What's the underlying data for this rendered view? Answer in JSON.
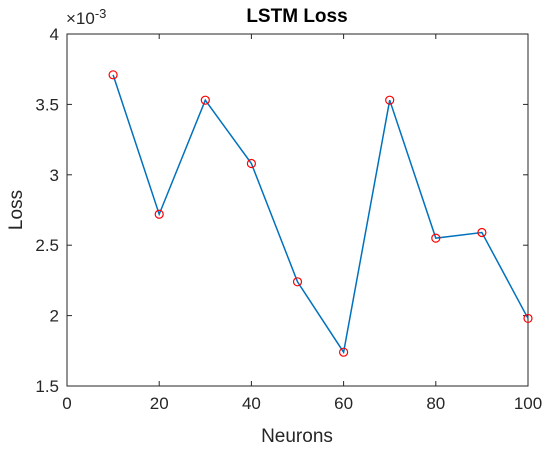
{
  "chart_data": {
    "type": "line",
    "title": "LSTM Loss",
    "xlabel": "Neurons",
    "ylabel": "Loss",
    "y_exponent_base": "×10",
    "y_exponent_power": "-3",
    "xlim": [
      0,
      100
    ],
    "ylim": [
      1.5,
      4
    ],
    "xticks": [
      0,
      20,
      40,
      60,
      80,
      100
    ],
    "xtick_labels": [
      "0",
      "20",
      "40",
      "60",
      "80",
      "100"
    ],
    "yticks": [
      1.5,
      2,
      2.5,
      3,
      3.5,
      4
    ],
    "ytick_labels": [
      "1.5",
      "2",
      "2.5",
      "3",
      "3.5",
      "4"
    ],
    "grid": false,
    "series": [
      {
        "x": [
          10,
          20,
          30,
          40,
          50,
          60,
          70,
          80,
          90,
          100
        ],
        "y": [
          3.71,
          2.72,
          3.53,
          3.08,
          2.24,
          1.74,
          3.53,
          2.55,
          2.59,
          1.98
        ],
        "line_color": "#0072BD",
        "marker": "circle",
        "marker_color": "#FF0000"
      }
    ]
  }
}
